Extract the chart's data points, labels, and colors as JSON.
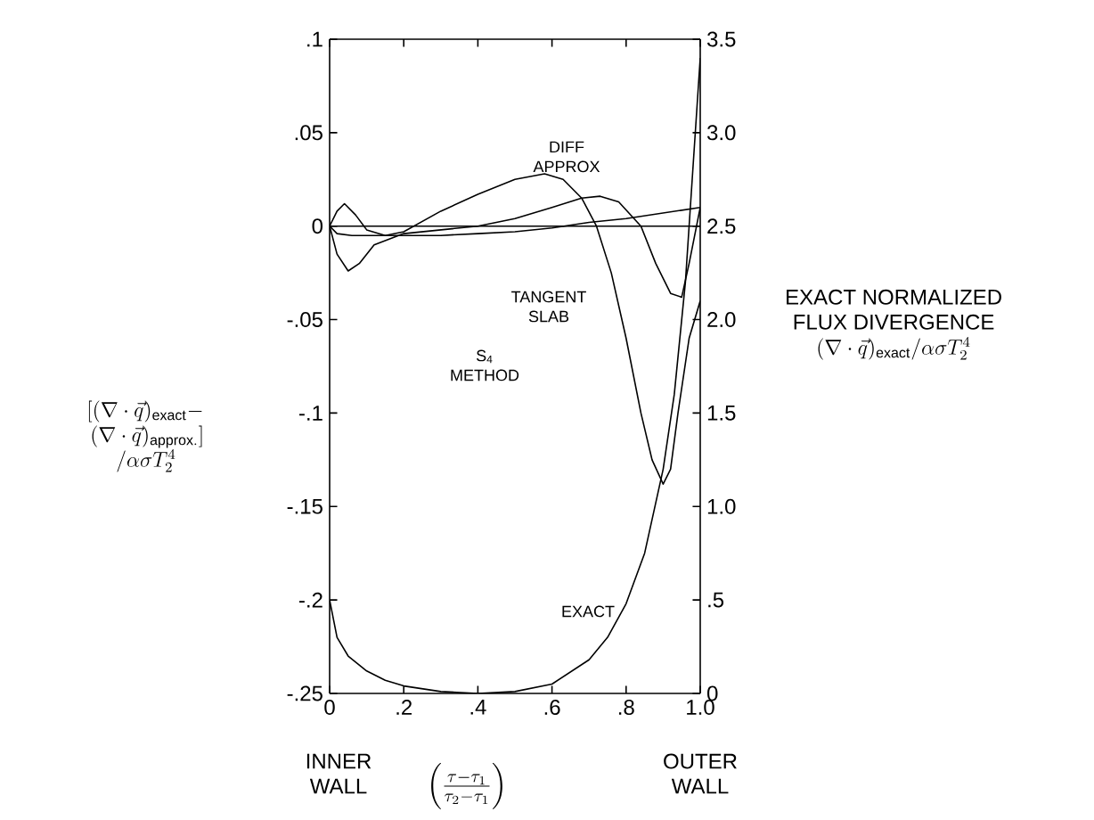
{
  "chart_data": {
    "type": "line",
    "xlabel": "\\left(\\frac{\\tau-\\tau_1}{\\tau_2-\\tau_1}\\right)",
    "ylabel": "\\begin{array}{c}\\left[(\\nabla\\cdot\\vec{q})_{\\mathrm{exact}}-\\right.\\\\ \\left.(\\nabla\\cdot\\vec{q})_{\\mathrm{approx.}}\\right]\\\\ /\\alpha\\sigma T_2^{4}\\end{array}",
    "y2label": "\\begin{array}{c}\\mbox{EXACT NORMALIZED}\\\\ \\mbox{FLUX DIVERGENCE}\\\\ (\\nabla\\cdot\\vec{q})_{\\mathrm{exact}}/\\alpha\\sigma T_2^{4}\\end{array}",
    "xlim": [
      0,
      1
    ],
    "ylim": [
      -0.25,
      0.1
    ],
    "y2lim": [
      0,
      3.5
    ],
    "xticks": [
      0,
      {
        "value": 0.2,
        "label": ".2"
      },
      {
        "value": 0.4,
        "label": ".4"
      },
      {
        "value": 0.6,
        "label": ".6"
      },
      {
        "value": 0.8,
        "label": ".8"
      },
      {
        "value": 1.0,
        "label": "1.0"
      }
    ],
    "yticks": [
      {
        "value": -0.25,
        "label": "-.25"
      },
      {
        "value": -0.2,
        "label": "-.2"
      },
      {
        "value": -0.15,
        "label": "-.15"
      },
      {
        "value": -0.1,
        "label": "-.1"
      },
      {
        "value": -0.05,
        "label": "-.05"
      },
      0,
      {
        "value": 0.05,
        "label": ".05"
      },
      {
        "value": 0.1,
        "label": ".1"
      }
    ],
    "y2ticks": [
      0,
      {
        "value": 0.5,
        "label": ".5"
      },
      {
        "value": 1.0,
        "label": "1.0"
      },
      {
        "value": 1.5,
        "label": "1.5"
      },
      {
        "value": 2.0,
        "label": "2.0"
      },
      {
        "value": 2.5,
        "label": "2.5"
      },
      {
        "value": 3.0,
        "label": "3.0"
      },
      {
        "value": 3.5,
        "label": "3.5"
      }
    ],
    "ref_lines": [
      {
        "axis": "y",
        "value": 0,
        "color": "#000000"
      }
    ],
    "series": [
      {
        "color": "#000000",
        "x": [
          0,
          0.02,
          0.04,
          0.07,
          0.1,
          0.15,
          0.2,
          0.3,
          0.4,
          0.5,
          0.58,
          0.63,
          0.68,
          0.72,
          0.76,
          0.8,
          0.84,
          0.87,
          0.9,
          0.92,
          0.94,
          0.97,
          1.0
        ],
        "values": [
          0,
          0.008,
          0.012,
          0.006,
          -0.002,
          -0.005,
          -0.003,
          0.008,
          0.017,
          0.025,
          0.028,
          0.025,
          0.015,
          0.0,
          -0.025,
          -0.06,
          -0.1,
          -0.125,
          -0.138,
          -0.13,
          -0.1,
          -0.06,
          -0.04
        ]
      },
      {
        "color": "#000000",
        "x": [
          0,
          0.02,
          0.05,
          0.08,
          0.12,
          0.2,
          0.3,
          0.4,
          0.5,
          0.6,
          0.68,
          0.73,
          0.78,
          0.84,
          0.88,
          0.92,
          0.95,
          0.97,
          1.0
        ],
        "values": [
          0,
          -0.015,
          -0.024,
          -0.02,
          -0.01,
          -0.004,
          -0.002,
          0.0,
          0.004,
          0.01,
          0.015,
          0.016,
          0.013,
          0.0,
          -0.02,
          -0.036,
          -0.038,
          -0.02,
          0.01
        ]
      },
      {
        "color": "#000000",
        "x": [
          0,
          0.02,
          0.06,
          0.1,
          0.2,
          0.3,
          0.4,
          0.5,
          0.6,
          0.7,
          0.8,
          0.9,
          1.0
        ],
        "values": [
          0,
          -0.004,
          -0.005,
          -0.005,
          -0.005,
          -0.005,
          -0.004,
          -0.003,
          -0.001,
          0.002,
          0.004,
          0.007,
          0.01
        ]
      },
      {
        "color": "#000000",
        "axis": "y2",
        "x": [
          0,
          0.02,
          0.05,
          0.1,
          0.15,
          0.2,
          0.3,
          0.4,
          0.5,
          0.6,
          0.7,
          0.75,
          0.8,
          0.85,
          0.9,
          0.93,
          0.96,
          0.98,
          1.0
        ],
        "values": [
          0.5,
          0.3,
          0.2,
          0.12,
          0.07,
          0.04,
          0.01,
          0,
          0.01,
          0.05,
          0.18,
          0.3,
          0.48,
          0.75,
          1.2,
          1.6,
          2.2,
          2.8,
          3.4
        ]
      }
    ],
    "annotations": [
      "DIFF APPROX",
      "TANGENT SLAB",
      "S$_{4}$ METHOD",
      "EXACT",
      "INNER WALL",
      "OUTER WALL"
    ]
  }
}
